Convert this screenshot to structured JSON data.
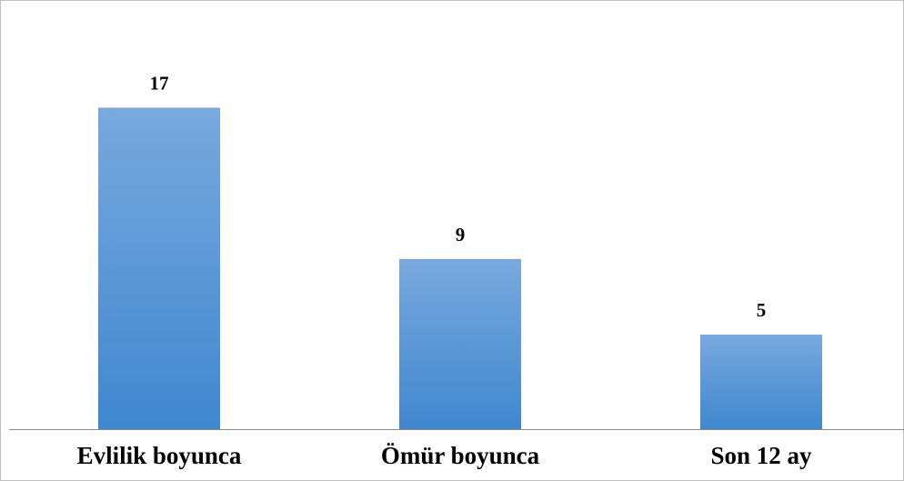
{
  "chart_data": {
    "type": "bar",
    "title": "",
    "xlabel": "",
    "ylabel": "",
    "categories": [
      "Evlilik boyunca",
      "Ömür boyunca",
      "Son 12 ay"
    ],
    "values": [
      17,
      9,
      5
    ],
    "data_labels": [
      "17",
      "9",
      "5"
    ],
    "ylim": [
      0,
      21
    ],
    "grid": false,
    "legend": "none",
    "colors": {
      "bar_top": "#79a9de",
      "bar_bottom": "#3f87cf",
      "axis": "#8c8c8c",
      "frame": "#bfbfbf"
    }
  }
}
